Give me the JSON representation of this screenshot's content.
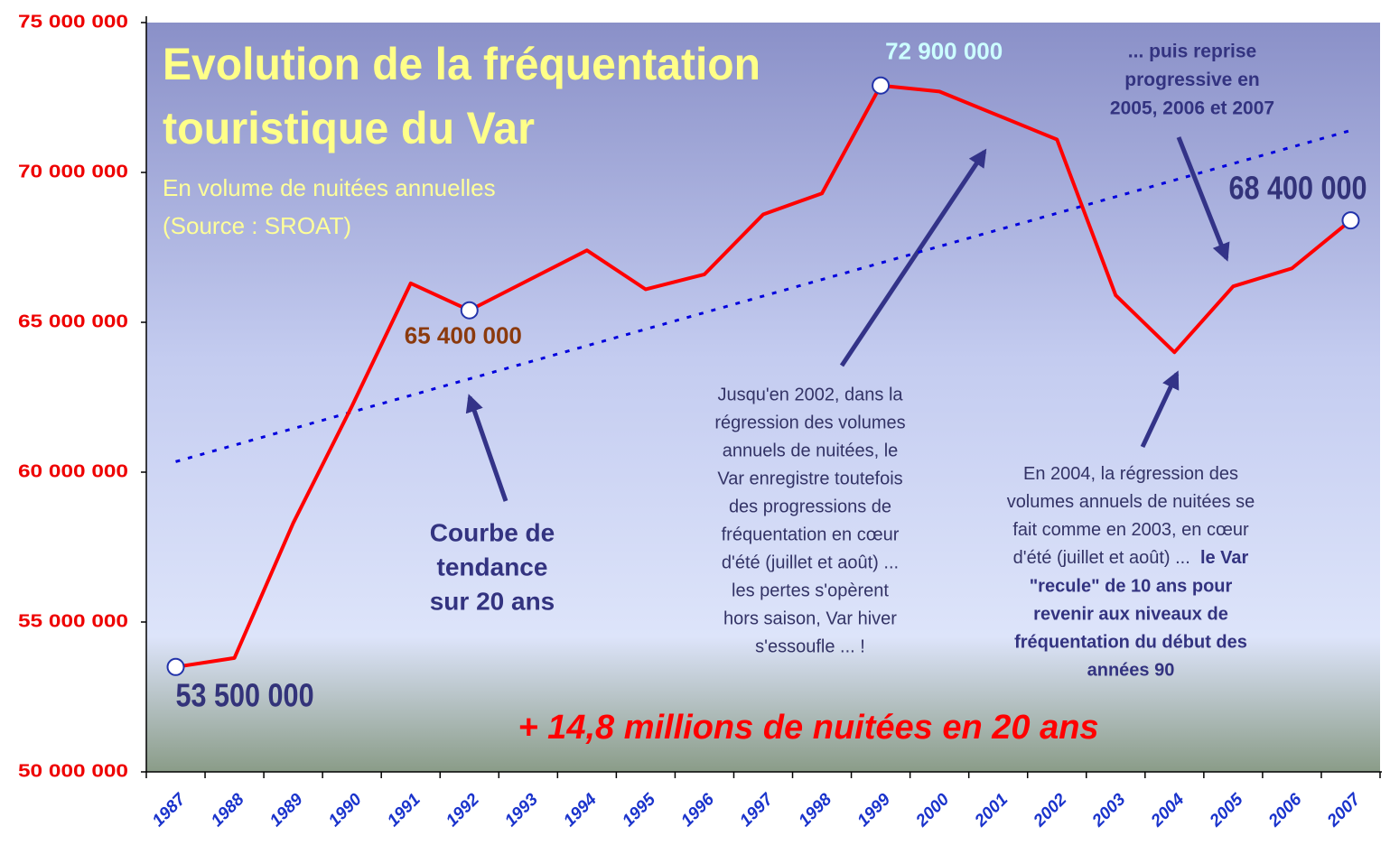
{
  "chart_data": {
    "type": "line",
    "title_lines": [
      "Evolution de la fréquentation",
      "touristique du Var"
    ],
    "subtitle_lines": [
      "En volume de nuitées annuelles",
      "(Source : SROAT)"
    ],
    "categories": [
      "1987",
      "1988",
      "1989",
      "1990",
      "1991",
      "1992",
      "1993",
      "1994",
      "1995",
      "1996",
      "1997",
      "1998",
      "1999",
      "2000",
      "2001",
      "2002",
      "2003",
      "2004",
      "2005",
      "2006",
      "2007"
    ],
    "series": [
      {
        "color": "#ff0000",
        "values": [
          53500000,
          53800000,
          58300000,
          62200000,
          66300000,
          65400000,
          66400000,
          67400000,
          66100000,
          66600000,
          68600000,
          69300000,
          72900000,
          72700000,
          71900000,
          71100000,
          65900000,
          64000000,
          66200000,
          66800000,
          68400000
        ],
        "value_labels": [
          "53 500 000",
          null,
          null,
          null,
          null,
          "65 400 000",
          null,
          null,
          null,
          null,
          null,
          null,
          "72 900 000",
          null,
          null,
          null,
          null,
          null,
          null,
          null,
          "68 400 000"
        ],
        "value_label_colors": [
          "#33337a",
          null,
          null,
          null,
          null,
          "#8b3a0e",
          null,
          null,
          null,
          null,
          null,
          null,
          "#ccffff",
          null,
          null,
          null,
          null,
          null,
          null,
          null,
          "#33337a"
        ]
      }
    ],
    "trend": {
      "color": "#0000dd",
      "start": 60350000,
      "end": 71400000
    },
    "ylim": [
      50000000,
      75000000
    ],
    "yticks": [
      {
        "value": 50000000,
        "label": "50 000 000"
      },
      {
        "value": 55000000,
        "label": "55 000 000"
      },
      {
        "value": 60000000,
        "label": "60 000 000"
      },
      {
        "value": 65000000,
        "label": "65 000 000"
      },
      {
        "value": 70000000,
        "label": "70 000 000"
      },
      {
        "value": 75000000,
        "label": "75 000 000"
      }
    ],
    "annotations": {
      "trend_note": [
        "Courbe de",
        "tendance",
        "sur 20 ans"
      ],
      "note_2002": [
        "Jusqu'en 2002, dans la",
        "régression des volumes",
        "annuels de nuitées, le",
        "Var enregistre toutefois",
        "des progressions de",
        "fréquentation en cœur",
        "d'été (juillet et août) ...",
        "les pertes s'opèrent",
        "hors saison, Var hiver",
        "s'essoufle ...   !"
      ],
      "note_2004": [
        "En 2004, la régression des",
        "volumes annuels de nuitées se",
        "fait comme en 2003, en cœur",
        "d'été (juillet et août) ..."
      ],
      "note_2004_bold": [
        "le Var",
        "\"recule\" de 10 ans pour",
        "revenir aux niveaux de",
        "fréquentation du début des",
        "années 90"
      ],
      "note_reprise": [
        "... puis reprise",
        "progressive en",
        "2005, 2006 et 2007"
      ],
      "summary": "+ 14,8 millions de nuitées en 20 ans"
    }
  }
}
